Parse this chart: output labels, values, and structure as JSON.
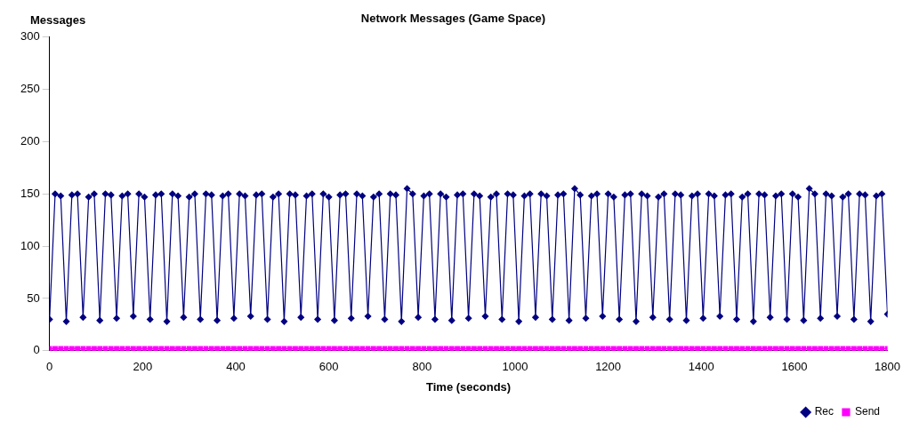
{
  "chart_data": {
    "type": "line",
    "title": "Network Messages (Game Space)",
    "ylabel": "Messages",
    "xlabel": "Time (seconds)",
    "x": [
      0,
      12,
      24,
      36,
      48,
      60,
      72,
      84,
      96,
      108,
      120,
      132,
      144,
      156,
      168,
      180,
      192,
      204,
      216,
      228,
      240,
      252,
      264,
      276,
      288,
      300,
      312,
      324,
      336,
      348,
      360,
      372,
      384,
      396,
      408,
      420,
      432,
      444,
      456,
      468,
      480,
      492,
      504,
      516,
      528,
      540,
      552,
      564,
      576,
      588,
      600,
      612,
      624,
      636,
      648,
      660,
      672,
      684,
      696,
      708,
      720,
      732,
      744,
      756,
      768,
      780,
      792,
      804,
      816,
      828,
      840,
      852,
      864,
      876,
      888,
      900,
      912,
      924,
      936,
      948,
      960,
      972,
      984,
      996,
      1008,
      1020,
      1032,
      1044,
      1056,
      1068,
      1080,
      1092,
      1104,
      1116,
      1128,
      1140,
      1152,
      1164,
      1176,
      1188,
      1200,
      1212,
      1224,
      1236,
      1248,
      1260,
      1272,
      1284,
      1296,
      1308,
      1320,
      1332,
      1344,
      1356,
      1368,
      1380,
      1392,
      1404,
      1416,
      1428,
      1440,
      1452,
      1464,
      1476,
      1488,
      1500,
      1512,
      1524,
      1536,
      1548,
      1560,
      1572,
      1584,
      1596,
      1608,
      1620,
      1632,
      1644,
      1656,
      1668,
      1680,
      1692,
      1704,
      1716,
      1728,
      1740,
      1752,
      1764,
      1776,
      1788,
      1800
    ],
    "series": [
      {
        "name": "Rec",
        "color": "#000080",
        "marker": "diamond",
        "values": [
          30,
          150,
          148,
          28,
          149,
          150,
          32,
          147,
          150,
          29,
          150,
          149,
          31,
          148,
          150,
          33,
          150,
          147,
          30,
          149,
          150,
          28,
          150,
          148,
          32,
          147,
          150,
          30,
          150,
          149,
          29,
          148,
          150,
          31,
          150,
          148,
          33,
          149,
          150,
          30,
          147,
          150,
          28,
          150,
          149,
          32,
          148,
          150,
          30,
          150,
          147,
          29,
          149,
          150,
          31,
          150,
          148,
          33,
          147,
          150,
          30,
          150,
          149,
          28,
          155,
          150,
          32,
          148,
          150,
          30,
          150,
          147,
          29,
          149,
          150,
          31,
          150,
          148,
          33,
          147,
          150,
          30,
          150,
          149,
          28,
          148,
          150,
          32,
          150,
          148,
          30,
          149,
          150,
          29,
          155,
          149,
          31,
          148,
          150,
          33,
          150,
          147,
          30,
          149,
          150,
          28,
          150,
          148,
          32,
          147,
          150,
          30,
          150,
          149,
          29,
          148,
          150,
          31,
          150,
          148,
          33,
          149,
          150,
          30,
          147,
          150,
          28,
          150,
          149,
          32,
          148,
          150,
          30,
          150,
          147,
          29,
          155,
          150,
          31,
          150,
          148,
          33,
          147,
          150,
          30,
          150,
          149,
          28,
          148,
          150,
          35
        ]
      },
      {
        "name": "Send",
        "color": "#ff00ff",
        "marker": "square",
        "values": [
          2,
          2,
          2,
          2,
          2,
          2,
          2,
          2,
          2,
          2,
          2,
          2,
          2,
          2,
          2,
          2,
          2,
          2,
          2,
          2,
          2,
          2,
          2,
          2,
          2,
          2,
          2,
          2,
          2,
          2,
          2,
          2,
          2,
          2,
          2,
          2,
          2,
          2,
          2,
          2,
          2,
          2,
          2,
          2,
          2,
          2,
          2,
          2,
          2,
          2,
          2,
          2,
          2,
          2,
          2,
          2,
          2,
          2,
          2,
          2,
          2,
          2,
          2,
          2,
          2,
          2,
          2,
          2,
          2,
          2,
          2,
          2,
          2,
          2,
          2,
          2,
          2,
          2,
          2,
          2,
          2,
          2,
          2,
          2,
          2,
          2,
          2,
          2,
          2,
          2,
          2,
          2,
          2,
          2,
          2,
          2,
          2,
          2,
          2,
          2,
          2,
          2,
          2,
          2,
          2,
          2,
          2,
          2,
          2,
          2,
          2,
          2,
          2,
          2,
          2,
          2,
          2,
          2,
          2,
          2,
          2,
          2,
          2,
          2,
          2,
          2,
          2,
          2,
          2,
          2,
          2,
          2,
          2,
          2,
          2,
          2,
          2,
          2,
          2,
          2,
          2,
          2,
          2,
          2,
          2,
          2,
          2,
          2,
          2,
          2,
          2
        ]
      }
    ],
    "xlim": [
      0,
      1800
    ],
    "xticks": [
      0,
      200,
      400,
      600,
      800,
      1000,
      1200,
      1400,
      1600,
      1800
    ],
    "ylim": [
      0,
      300
    ],
    "yticks": [
      0,
      50,
      100,
      150,
      200,
      250,
      300
    ],
    "grid": false,
    "legend": "bottom right",
    "line_style": "solid"
  }
}
